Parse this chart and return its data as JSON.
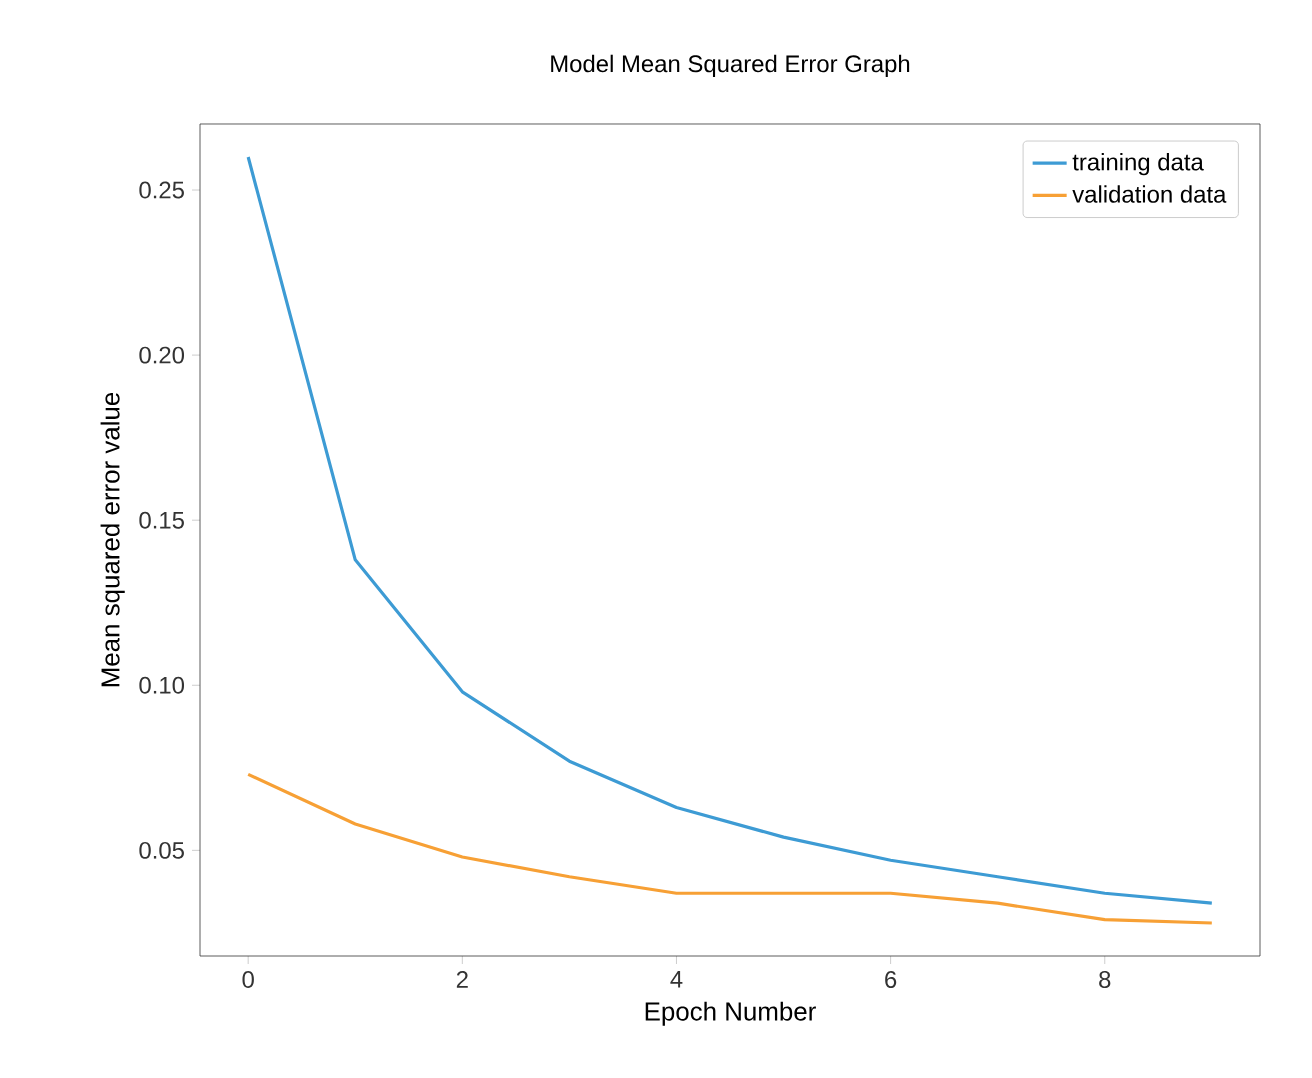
{
  "chart_data": {
    "type": "line",
    "title": "Model Mean Squared Error Graph",
    "xlabel": "Epoch Number",
    "ylabel": "Mean squared error value",
    "x": [
      0,
      1,
      2,
      3,
      4,
      5,
      6,
      7,
      8,
      9
    ],
    "series": [
      {
        "name": "training data",
        "color": "#3d9bd4",
        "values": [
          0.26,
          0.138,
          0.098,
          0.077,
          0.063,
          0.054,
          0.047,
          0.042,
          0.037,
          0.034
        ]
      },
      {
        "name": "validation data",
        "color": "#f7a035",
        "values": [
          0.073,
          0.058,
          0.048,
          0.042,
          0.037,
          0.037,
          0.037,
          0.034,
          0.029,
          0.028
        ]
      }
    ],
    "xlim": [
      -0.45,
      9.45
    ],
    "ylim": [
      0.018,
      0.27
    ],
    "xticks": [
      0,
      2,
      4,
      6,
      8
    ],
    "yticks": [
      {
        "value": 0.05,
        "label": "0.05"
      },
      {
        "value": 0.1,
        "label": "0.10"
      },
      {
        "value": 0.15,
        "label": "0.15"
      },
      {
        "value": 0.2,
        "label": "0.20"
      },
      {
        "value": 0.25,
        "label": "0.25"
      }
    ],
    "legend": "top right",
    "grid": false,
    "marker": "none",
    "line_style": "solid"
  }
}
